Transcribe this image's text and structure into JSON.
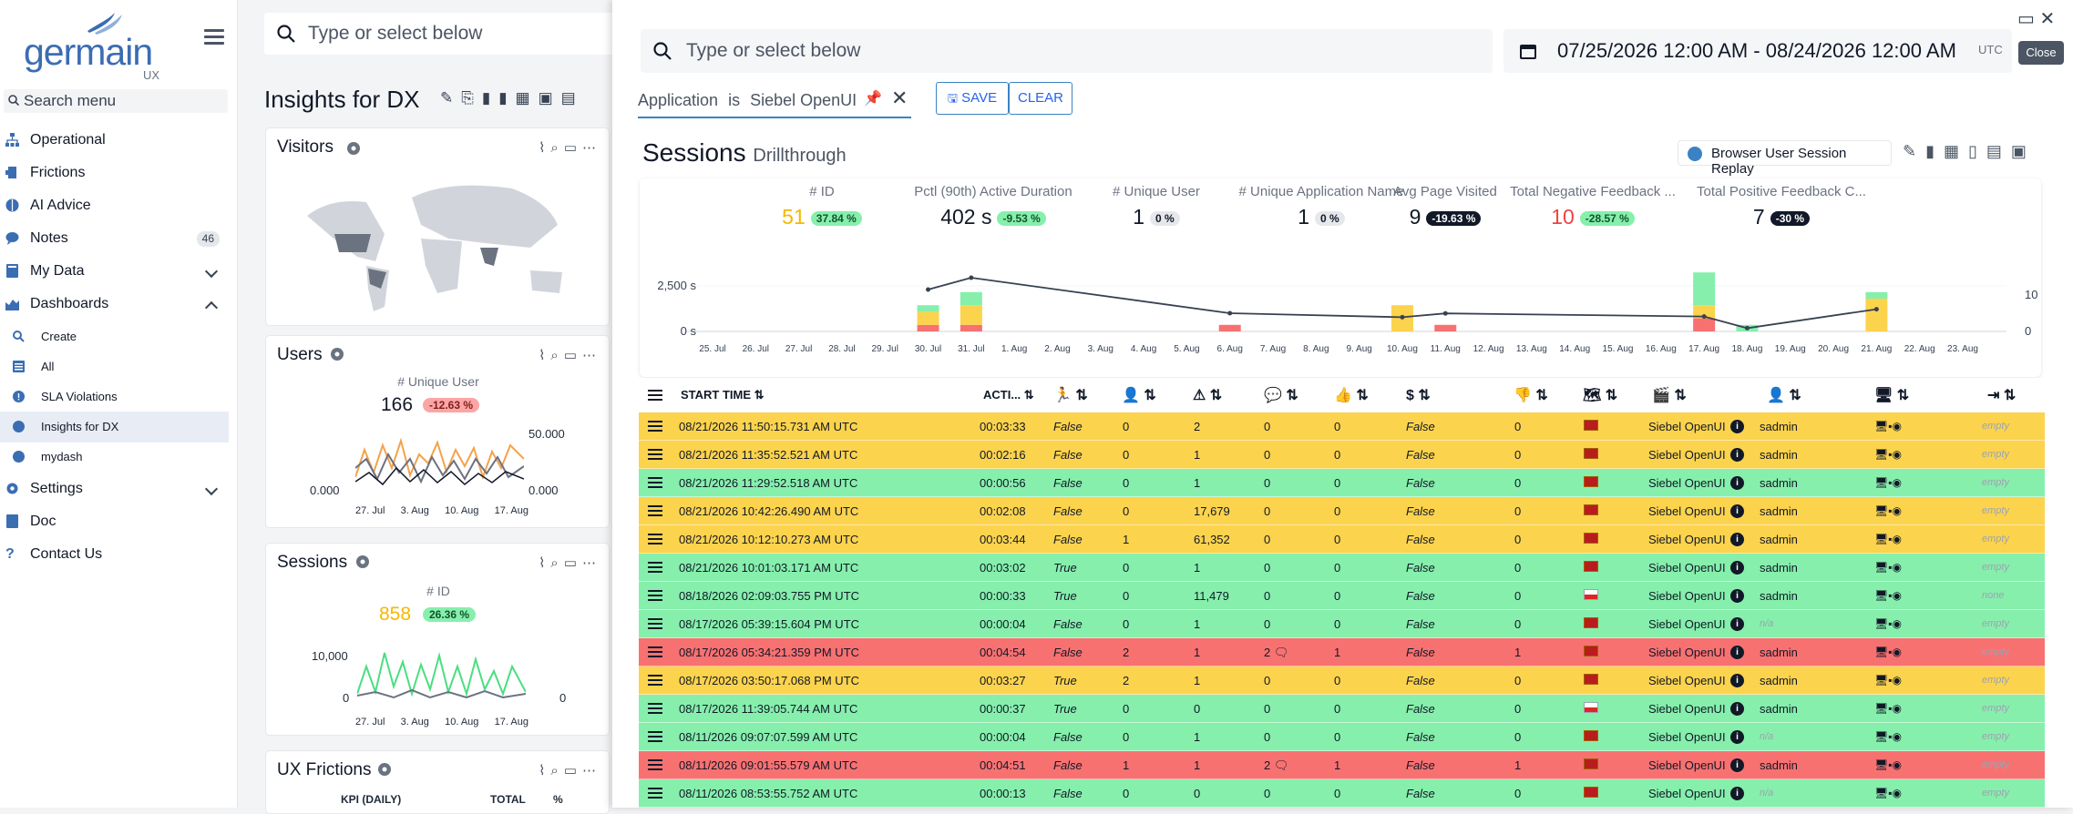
{
  "sidebar": {
    "logo_text": "germain",
    "logo_sub": "UX",
    "search_placeholder": "Search menu",
    "items": [
      {
        "label": "Operational"
      },
      {
        "label": "Frictions"
      },
      {
        "label": "AI Advice"
      },
      {
        "label": "Notes",
        "count": "46"
      },
      {
        "label": "My Data"
      },
      {
        "label": "Dashboards"
      },
      {
        "label": "Create"
      },
      {
        "label": "All"
      },
      {
        "label": "SLA Violations"
      },
      {
        "label": "Insights for DX"
      },
      {
        "label": "mydash"
      },
      {
        "label": "Settings"
      },
      {
        "label": "Doc"
      },
      {
        "label": "Contact Us"
      }
    ]
  },
  "dashboard": {
    "search_placeholder": "Type or select below",
    "title": "Insights for DX",
    "cards": [
      {
        "title": "Visitors"
      },
      {
        "title": "Users",
        "metric_label": "# Unique User",
        "value": "166",
        "pct": "-12.63 %",
        "y_top": "50.000",
        "y_bottom": "0.000",
        "y_bottom_left": "0.000",
        "x": [
          "27. Jul",
          "3. Aug",
          "10. Aug",
          "17. Aug"
        ]
      },
      {
        "title": "Sessions",
        "metric_label": "# ID",
        "value": "858",
        "pct": "26.36 %",
        "y_top": "10,000",
        "y_bottom": "0",
        "y_bottom_right": "0",
        "x": [
          "27. Jul",
          "3. Aug",
          "10. Aug",
          "17. Aug"
        ]
      },
      {
        "title": "UX Frictions",
        "col1": "KPI (DAILY)",
        "col2": "TOTAL",
        "col3": "%"
      }
    ]
  },
  "drawer": {
    "search_placeholder": "Type or select below",
    "date_range": "07/25/2026 12:00 AM - 08/24/2026 12:00 AM",
    "timezone": "UTC",
    "close_label": "Close",
    "filter": {
      "field": "Application",
      "op": "is",
      "value": "Siebel OpenUI"
    },
    "save_label": "SAVE",
    "clear_label": "CLEAR",
    "title": "Sessions",
    "subtitle": "Drillthrough",
    "replay_label": "Browser User Session Replay",
    "kpis": [
      {
        "label": "# ID",
        "value": "51",
        "pct": "37.84 %"
      },
      {
        "label": "Pctl (90th) Active Duration",
        "value": "402 s",
        "pct": "-9.53 %"
      },
      {
        "label": "# Unique User",
        "value": "1",
        "pct": "0 %"
      },
      {
        "label": "# Unique Application Name",
        "value": "1",
        "pct": "0 %"
      },
      {
        "label": "Avg Page Visited",
        "value": "9",
        "pct": "-19.63 %"
      },
      {
        "label": "Total Negative Feedback ...",
        "value": "10",
        "pct": "-28.57 %"
      },
      {
        "label": "Total Positive Feedback C...",
        "value": "7",
        "pct": "-30 %"
      }
    ]
  },
  "chart_data": {
    "type": "bar",
    "categories": [
      "25. Jul",
      "26. Jul",
      "27. Jul",
      "28. Jul",
      "29. Jul",
      "30. Jul",
      "31. Jul",
      "1. Aug",
      "2. Aug",
      "3. Aug",
      "4. Aug",
      "5. Aug",
      "6. Aug",
      "7. Aug",
      "8. Aug",
      "9. Aug",
      "10. Aug",
      "11. Aug",
      "12. Aug",
      "13. Aug",
      "14. Aug",
      "15. Aug",
      "16. Aug",
      "17. Aug",
      "18. Aug",
      "19. Aug",
      "20. Aug",
      "21. Aug",
      "22. Aug",
      "23. Aug"
    ],
    "series": [
      {
        "values": [
          0,
          0,
          0,
          0,
          0,
          1,
          1,
          0,
          0,
          0,
          0,
          0,
          0,
          0,
          0,
          0,
          0,
          0,
          0,
          0,
          0,
          0,
          0,
          2,
          0,
          0,
          0,
          0,
          0,
          0
        ]
      },
      {
        "values": [
          0,
          0,
          0,
          0,
          0,
          2,
          3,
          0,
          0,
          0,
          0,
          0,
          0,
          0,
          0,
          0,
          4,
          0,
          0,
          0,
          0,
          0,
          0,
          2,
          0,
          0,
          0,
          5,
          0,
          0
        ]
      },
      {
        "values": [
          0,
          0,
          0,
          0,
          0,
          1,
          2,
          0,
          0,
          0,
          0,
          0,
          0,
          0,
          0,
          0,
          0,
          0,
          0,
          0,
          0,
          0,
          0,
          5,
          1,
          0,
          0,
          1,
          0,
          0
        ]
      },
      {
        "values": [
          0,
          0,
          0,
          0,
          0,
          0,
          0,
          0,
          0,
          0,
          0,
          0,
          1,
          0,
          0,
          0,
          0,
          1,
          0,
          0,
          0,
          0,
          0,
          0,
          0,
          0,
          0,
          0,
          0,
          0
        ]
      }
    ],
    "line": {
      "x": [
        "30. Jul",
        "31. Jul",
        "6. Aug",
        "10. Aug",
        "11. Aug",
        "17. Aug",
        "18. Aug",
        "21. Aug"
      ],
      "y": [
        2300,
        2950,
        1000,
        780,
        990,
        820,
        180,
        1220
      ]
    },
    "y_left_ticks": [
      "2,500 s",
      "0 s"
    ],
    "y_right_ticks": [
      "10",
      "0"
    ],
    "colors": {
      "bar1": "#f87171",
      "bar2": "#fcd34d",
      "bar3": "#86efac",
      "bar4": "#f87171",
      "line": "#374151"
    }
  },
  "table": {
    "headers": [
      "START TIME",
      "ACTI...",
      "",
      "",
      "",
      "",
      "",
      "",
      "",
      "",
      "",
      "",
      "",
      "",
      ""
    ],
    "rows": [
      {
        "color": "yellow",
        "time": "08/21/2026 11:50:15.731 AM UTC",
        "dur": "00:03:33",
        "b1": "False",
        "n1": "0",
        "n2": "2",
        "n3": "0",
        "n4": "0",
        "b2": "False",
        "n5": "0",
        "flag": "lk",
        "app": "Siebel OpenUI",
        "user": "sadmin",
        "tail": "empty"
      },
      {
        "color": "yellow",
        "time": "08/21/2026 11:35:52.521 AM UTC",
        "dur": "00:02:16",
        "b1": "False",
        "n1": "0",
        "n2": "1",
        "n3": "0",
        "n4": "0",
        "b2": "False",
        "n5": "0",
        "flag": "lk",
        "app": "Siebel OpenUI",
        "user": "sadmin",
        "tail": "empty"
      },
      {
        "color": "green",
        "time": "08/21/2026 11:29:52.518 AM UTC",
        "dur": "00:00:56",
        "b1": "False",
        "n1": "0",
        "n2": "1",
        "n3": "0",
        "n4": "0",
        "b2": "False",
        "n5": "0",
        "flag": "lk",
        "app": "Siebel OpenUI",
        "user": "sadmin",
        "tail": "empty"
      },
      {
        "color": "yellow",
        "time": "08/21/2026 10:42:26.490 AM UTC",
        "dur": "00:02:08",
        "b1": "False",
        "n1": "0",
        "n2": "17,679",
        "n3": "0",
        "n4": "0",
        "b2": "False",
        "n5": "0",
        "flag": "lk",
        "app": "Siebel OpenUI",
        "user": "sadmin",
        "tail": "empty"
      },
      {
        "color": "yellow",
        "time": "08/21/2026 10:12:10.273 AM UTC",
        "dur": "00:03:44",
        "b1": "False",
        "n1": "1",
        "n2": "61,352",
        "n3": "0",
        "n4": "0",
        "b2": "False",
        "n5": "0",
        "flag": "lk",
        "app": "Siebel OpenUI",
        "user": "sadmin",
        "tail": "empty"
      },
      {
        "color": "green",
        "time": "08/21/2026 10:01:03.171 AM UTC",
        "dur": "00:03:02",
        "b1": "True",
        "n1": "0",
        "n2": "1",
        "n3": "0",
        "n4": "0",
        "b2": "False",
        "n5": "0",
        "flag": "lk",
        "app": "Siebel OpenUI",
        "user": "sadmin",
        "tail": "empty"
      },
      {
        "color": "green",
        "time": "08/18/2026 02:09:03.755 PM UTC",
        "dur": "00:00:33",
        "b1": "True",
        "n1": "0",
        "n2": "11,479",
        "n3": "0",
        "n4": "0",
        "b2": "False",
        "n5": "0",
        "flag": "pl",
        "app": "Siebel OpenUI",
        "user": "sadmin",
        "tail": "none"
      },
      {
        "color": "green",
        "time": "08/17/2026 05:39:15.604 PM UTC",
        "dur": "00:00:04",
        "b1": "False",
        "n1": "0",
        "n2": "1",
        "n3": "0",
        "n4": "0",
        "b2": "False",
        "n5": "0",
        "flag": "lk",
        "app": "Siebel OpenUI",
        "user": "n/a",
        "tail": "empty"
      },
      {
        "color": "red",
        "time": "08/17/2026 05:34:21.359 PM UTC",
        "dur": "00:04:54",
        "b1": "False",
        "n1": "2",
        "n2": "1",
        "n3": "2",
        "n4": "1",
        "b2": "False",
        "n5": "1",
        "flag": "lk",
        "app": "Siebel OpenUI",
        "user": "sadmin",
        "tail": "empty"
      },
      {
        "color": "yellow",
        "time": "08/17/2026 03:50:17.068 PM UTC",
        "dur": "00:03:27",
        "b1": "True",
        "n1": "2",
        "n2": "1",
        "n3": "0",
        "n4": "0",
        "b2": "False",
        "n5": "0",
        "flag": "lk",
        "app": "Siebel OpenUI",
        "user": "sadmin",
        "tail": "empty"
      },
      {
        "color": "green",
        "time": "08/17/2026 11:39:05.744 AM UTC",
        "dur": "00:00:37",
        "b1": "True",
        "n1": "0",
        "n2": "0",
        "n3": "0",
        "n4": "0",
        "b2": "False",
        "n5": "0",
        "flag": "pl",
        "app": "Siebel OpenUI",
        "user": "sadmin",
        "tail": "empty"
      },
      {
        "color": "green",
        "time": "08/11/2026 09:07:07.599 AM UTC",
        "dur": "00:00:04",
        "b1": "False",
        "n1": "0",
        "n2": "1",
        "n3": "0",
        "n4": "0",
        "b2": "False",
        "n5": "0",
        "flag": "lk",
        "app": "Siebel OpenUI",
        "user": "n/a",
        "tail": "empty"
      },
      {
        "color": "red",
        "time": "08/11/2026 09:01:55.579 AM UTC",
        "dur": "00:04:51",
        "b1": "False",
        "n1": "1",
        "n2": "1",
        "n3": "2",
        "n4": "1",
        "b2": "False",
        "n5": "1",
        "flag": "lk",
        "app": "Siebel OpenUI",
        "user": "sadmin",
        "tail": "empty"
      },
      {
        "color": "green",
        "time": "08/11/2026 08:53:55.752 AM UTC",
        "dur": "00:00:13",
        "b1": "False",
        "n1": "0",
        "n2": "0",
        "n3": "0",
        "n4": "0",
        "b2": "False",
        "n5": "0",
        "flag": "lk",
        "app": "Siebel OpenUI",
        "user": "n/a",
        "tail": "empty"
      }
    ]
  }
}
